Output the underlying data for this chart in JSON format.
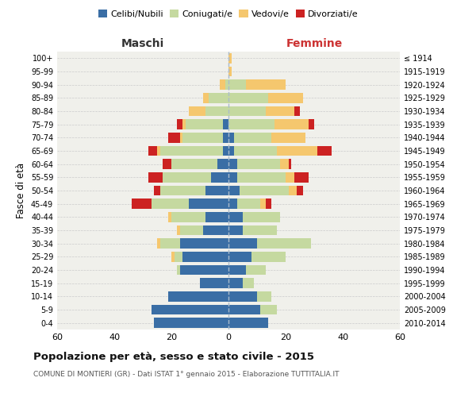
{
  "age_groups": [
    "0-4",
    "5-9",
    "10-14",
    "15-19",
    "20-24",
    "25-29",
    "30-34",
    "35-39",
    "40-44",
    "45-49",
    "50-54",
    "55-59",
    "60-64",
    "65-69",
    "70-74",
    "75-79",
    "80-84",
    "85-89",
    "90-94",
    "95-99",
    "100+"
  ],
  "birth_years": [
    "2010-2014",
    "2005-2009",
    "2000-2004",
    "1995-1999",
    "1990-1994",
    "1985-1989",
    "1980-1984",
    "1975-1979",
    "1970-1974",
    "1965-1969",
    "1960-1964",
    "1955-1959",
    "1950-1954",
    "1945-1949",
    "1940-1944",
    "1935-1939",
    "1930-1934",
    "1925-1929",
    "1920-1924",
    "1915-1919",
    "≤ 1914"
  ],
  "males": {
    "celibi": [
      26,
      27,
      21,
      10,
      17,
      16,
      17,
      9,
      8,
      14,
      8,
      6,
      4,
      2,
      2,
      2,
      0,
      0,
      0,
      0,
      0
    ],
    "coniugati": [
      0,
      0,
      0,
      0,
      1,
      3,
      7,
      8,
      12,
      13,
      16,
      17,
      16,
      22,
      14,
      13,
      8,
      7,
      1,
      0,
      0
    ],
    "vedovi": [
      0,
      0,
      0,
      0,
      0,
      1,
      1,
      1,
      1,
      0,
      0,
      0,
      0,
      1,
      1,
      1,
      6,
      2,
      2,
      0,
      0
    ],
    "divorziati": [
      0,
      0,
      0,
      0,
      0,
      0,
      0,
      0,
      0,
      7,
      2,
      5,
      3,
      3,
      4,
      2,
      0,
      0,
      0,
      0,
      0
    ]
  },
  "females": {
    "nubili": [
      14,
      11,
      10,
      5,
      6,
      8,
      10,
      5,
      5,
      3,
      4,
      3,
      3,
      2,
      2,
      0,
      0,
      0,
      0,
      0,
      0
    ],
    "coniugate": [
      0,
      6,
      5,
      4,
      7,
      12,
      19,
      12,
      13,
      8,
      17,
      17,
      15,
      15,
      13,
      16,
      13,
      14,
      6,
      0,
      0
    ],
    "vedove": [
      0,
      0,
      0,
      0,
      0,
      0,
      0,
      0,
      0,
      2,
      3,
      3,
      3,
      14,
      12,
      12,
      10,
      12,
      14,
      1,
      1
    ],
    "divorziate": [
      0,
      0,
      0,
      0,
      0,
      0,
      0,
      0,
      0,
      2,
      2,
      5,
      1,
      5,
      0,
      2,
      2,
      0,
      0,
      0,
      0
    ]
  },
  "colors": {
    "celibi_nubili": "#3a6ea5",
    "coniugati": "#c5d9a0",
    "vedovi": "#f5c76e",
    "divorziati": "#cc2222"
  },
  "xlim": 60,
  "title": "Popolazione per età, sesso e stato civile - 2015",
  "subtitle": "COMUNE DI MONTIERI (GR) - Dati ISTAT 1° gennaio 2015 - Elaborazione TUTTITALIA.IT",
  "ylabel": "Fasce di età",
  "top_left_label": "Maschi",
  "top_right_label": "Femmine",
  "legend_labels": [
    "Celibi/Nubili",
    "Coniugati/e",
    "Vedovi/e",
    "Divorziati/e"
  ],
  "bg_color": "#f0f0eb",
  "bar_height": 0.75
}
